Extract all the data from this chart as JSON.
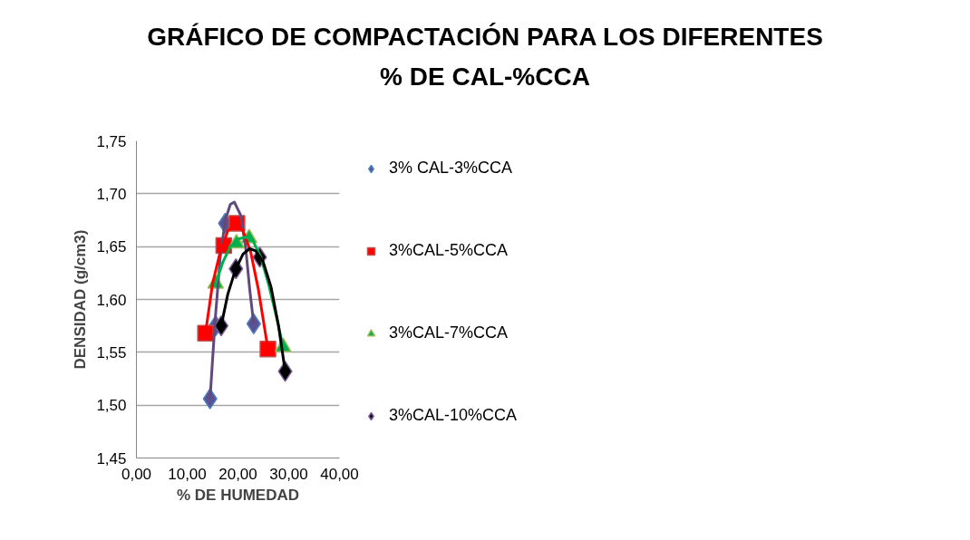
{
  "chart_data": {
    "type": "scatter",
    "title": "GRÁFICO DE COMPACTACIÓN PARA LOS DIFERENTES % DE CAL-%CCA",
    "xlabel": "% DE HUMEDAD",
    "ylabel": "DENSIDAD (g/cm3)",
    "xlim": [
      0,
      40
    ],
    "ylim": [
      1.45,
      1.75
    ],
    "xticks": [
      {
        "value": 0,
        "label": "0,00"
      },
      {
        "value": 10,
        "label": "10,00"
      },
      {
        "value": 20,
        "label": "20,00"
      },
      {
        "value": 30,
        "label": "30,00"
      },
      {
        "value": 40,
        "label": "40,00"
      }
    ],
    "yticks": [
      {
        "value": 1.45,
        "label": "1,45"
      },
      {
        "value": 1.5,
        "label": "1,50"
      },
      {
        "value": 1.55,
        "label": "1,55"
      },
      {
        "value": 1.6,
        "label": "1,60"
      },
      {
        "value": 1.65,
        "label": "1,65"
      },
      {
        "value": 1.7,
        "label": "1,70"
      },
      {
        "value": 1.75,
        "label": "1,75"
      }
    ],
    "grid": "y",
    "legend": "right",
    "series": [
      {
        "name": "3% CAL-3%CCA",
        "type": "scatter",
        "marker": "diamond",
        "color": "#5a5296",
        "x": [
          14.5,
          15.6,
          17.5,
          23.1
        ],
        "values": [
          1.506,
          1.575,
          1.672,
          1.577
        ]
      },
      {
        "name": "3%CAL-5%CCA",
        "type": "scatter",
        "marker": "square",
        "color": "#ff0000",
        "x": [
          13.6,
          17.2,
          19.8,
          25.9
        ],
        "values": [
          1.568,
          1.651,
          1.672,
          1.553
        ]
      },
      {
        "name": "3%CAL-7%CCA",
        "type": "scatter",
        "marker": "triangle",
        "color": "#00b050",
        "x": [
          15.6,
          19.7,
          22.2,
          28.9
        ],
        "values": [
          1.615,
          1.653,
          1.658,
          1.555
        ]
      },
      {
        "name": "3%CAL-10%CCA",
        "type": "scatter",
        "marker": "diamond",
        "color": "#000000",
        "x": [
          16.7,
          19.6,
          24.3,
          29.3
        ],
        "values": [
          1.575,
          1.629,
          1.64,
          1.532
        ]
      },
      {
        "type": "line",
        "color": "#604a7b",
        "x": [
          14.5,
          15.5,
          16.5,
          17.5,
          18.5,
          19.3,
          20.5,
          21.5,
          22.3,
          23.1
        ],
        "values": [
          1.506,
          1.58,
          1.64,
          1.675,
          1.69,
          1.692,
          1.68,
          1.65,
          1.61,
          1.577
        ]
      },
      {
        "type": "line",
        "color": "#ff0000",
        "x": [
          13.6,
          15,
          16.5,
          18,
          19.5,
          21,
          22.5,
          24,
          25.9
        ],
        "values": [
          1.568,
          1.615,
          1.645,
          1.665,
          1.671,
          1.665,
          1.645,
          1.61,
          1.553
        ]
      },
      {
        "type": "line",
        "color": "#00b050",
        "x": [
          15.6,
          17,
          18.5,
          20,
          21.5,
          23,
          24.5,
          26,
          27.5,
          28.9
        ],
        "values": [
          1.615,
          1.635,
          1.65,
          1.657,
          1.659,
          1.655,
          1.64,
          1.615,
          1.585,
          1.555
        ]
      },
      {
        "type": "line",
        "color": "#000000",
        "x": [
          16.7,
          18,
          19.5,
          21,
          22.3,
          23.5,
          25,
          26.5,
          28,
          29.3
        ],
        "values": [
          1.575,
          1.605,
          1.628,
          1.643,
          1.648,
          1.646,
          1.635,
          1.612,
          1.575,
          1.532
        ]
      }
    ]
  }
}
